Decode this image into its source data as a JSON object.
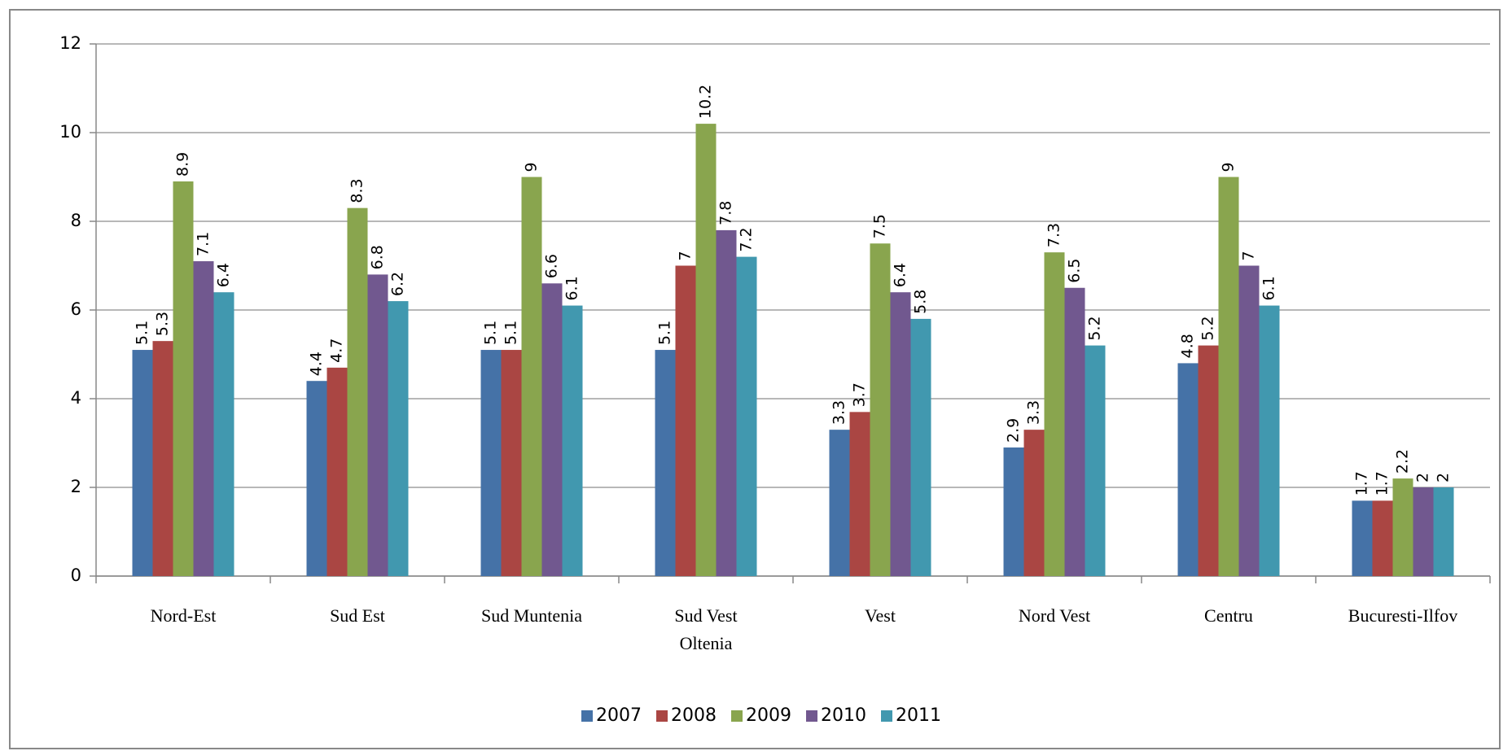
{
  "chart_data": {
    "type": "bar",
    "categories": [
      "Nord-Est",
      "Sud Est",
      "Sud Muntenia",
      "Sud Vest Oltenia",
      "Vest",
      "Nord Vest",
      "Centru",
      "Bucuresti-Ilfov"
    ],
    "series": [
      {
        "name": "2007",
        "color": "#4572a7",
        "values": [
          5.1,
          4.4,
          5.1,
          5.1,
          3.3,
          2.9,
          4.8,
          1.7
        ]
      },
      {
        "name": "2008",
        "color": "#aa4643",
        "values": [
          5.3,
          4.7,
          5.1,
          7,
          3.7,
          3.3,
          5.2,
          1.7
        ]
      },
      {
        "name": "2009",
        "color": "#89a54e",
        "values": [
          8.9,
          8.3,
          9,
          10.2,
          7.5,
          7.3,
          9,
          2.2
        ]
      },
      {
        "name": "2010",
        "color": "#71588f",
        "values": [
          7.1,
          6.8,
          6.6,
          7.8,
          6.4,
          6.5,
          7,
          2
        ]
      },
      {
        "name": "2011",
        "color": "#4198af",
        "values": [
          6.4,
          6.2,
          6.1,
          7.2,
          5.8,
          5.2,
          6.1,
          2
        ]
      }
    ],
    "ylim": [
      0,
      12
    ],
    "yticks": [
      0,
      2,
      4,
      6,
      8,
      10,
      12
    ],
    "grid": true,
    "legend": "bottom"
  }
}
